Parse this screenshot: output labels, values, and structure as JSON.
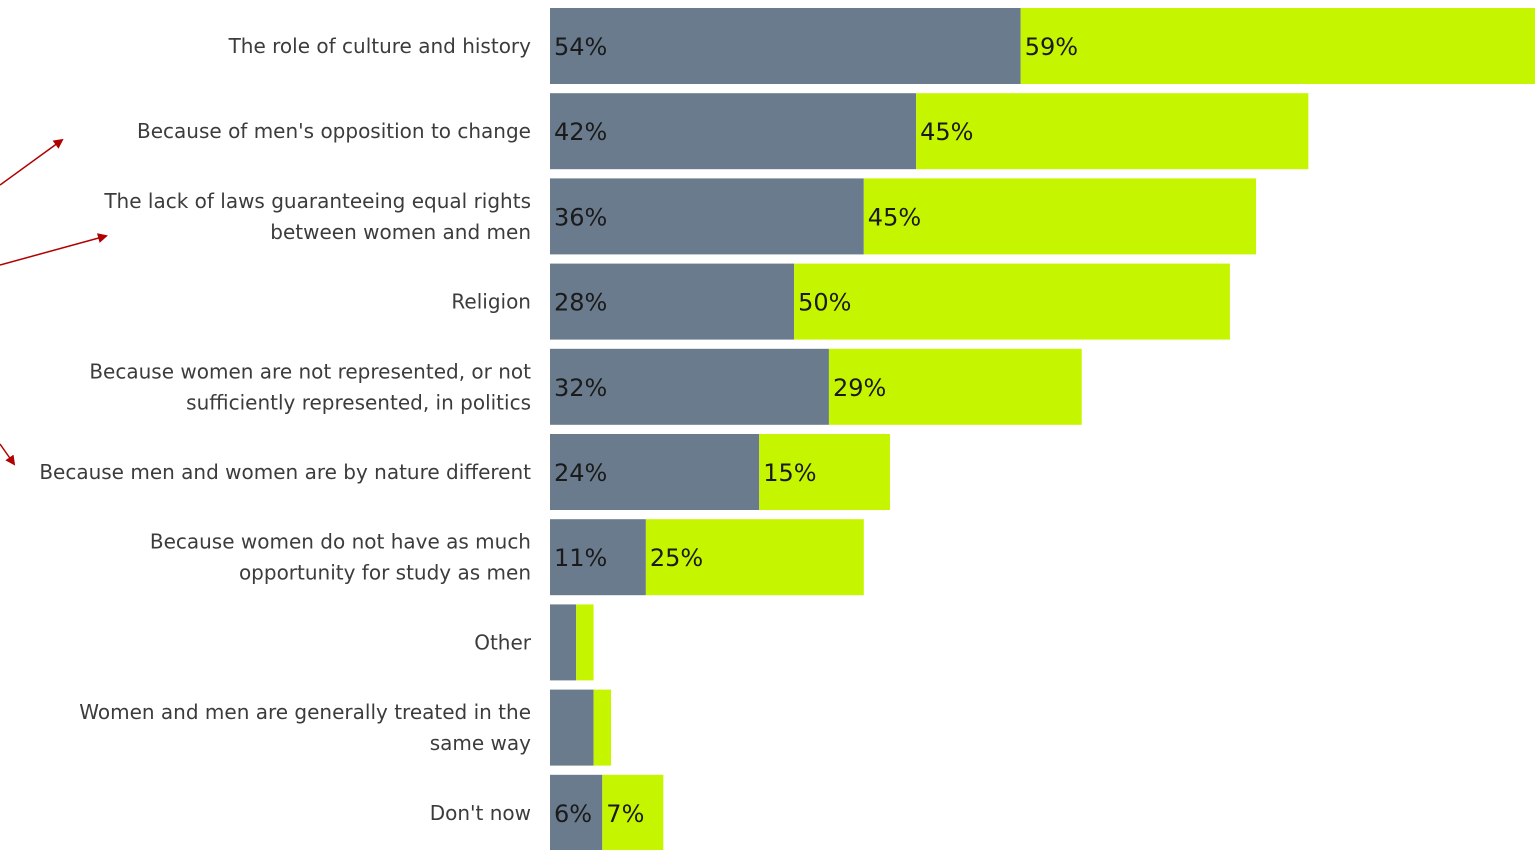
{
  "chart_data": {
    "type": "bar",
    "stacked": true,
    "orientation": "horizontal",
    "categories": [
      [
        "The role of culture and history"
      ],
      [
        "Because of men's opposition to change"
      ],
      [
        "The lack of laws guaranteeing equal rights",
        "between women and men"
      ],
      [
        "Religion"
      ],
      [
        "Because women are not represented, or not",
        "sufficiently represented, in politics"
      ],
      [
        "Because men and women are by nature different"
      ],
      [
        "Because women do not have as much",
        "opportunity for study as men"
      ],
      [
        "Other"
      ],
      [
        "Women and men are generally treated in the",
        "same way"
      ],
      [
        "Don't now"
      ]
    ],
    "series": [
      {
        "color": "#6b7b8e",
        "values": [
          54,
          42,
          36,
          28,
          32,
          24,
          11,
          3,
          5,
          6
        ],
        "labels": [
          "54%",
          "42%",
          "36%",
          "28%",
          "32%",
          "24%",
          "11%",
          "",
          "",
          "6%"
        ]
      },
      {
        "color": "#c6f500",
        "values": [
          59,
          45,
          45,
          50,
          29,
          15,
          25,
          2,
          2,
          7
        ],
        "labels": [
          "59%",
          "45%",
          "45%",
          "50%",
          "29%",
          "15%",
          "25%",
          "",
          "",
          "7%"
        ]
      }
    ],
    "xlim": [
      0,
      113
    ],
    "legend": "none",
    "grid": false
  },
  "annotations": {
    "arrow_color": "#b00000"
  }
}
